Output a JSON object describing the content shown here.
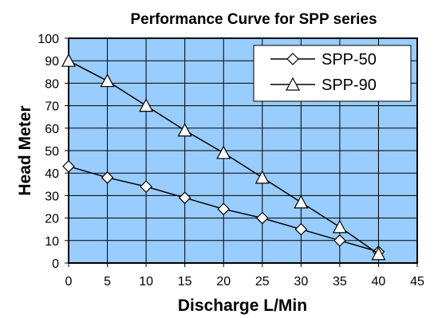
{
  "chart_data": {
    "type": "line",
    "title": "Performance Curve for SPP series",
    "xlabel": "Discharge L/Min",
    "ylabel": "Head Meter",
    "xlim": [
      0,
      45
    ],
    "ylim": [
      0,
      100
    ],
    "xticks": [
      0,
      5,
      10,
      15,
      20,
      25,
      30,
      35,
      40,
      45
    ],
    "yticks": [
      0,
      10,
      20,
      30,
      40,
      50,
      60,
      70,
      80,
      90,
      100
    ],
    "grid": true,
    "plot_background": "#99ccff",
    "legend_position": "top-right",
    "series": [
      {
        "name": "SPP-50",
        "marker": "diamond",
        "x": [
          0,
          5,
          10,
          15,
          20,
          25,
          30,
          35,
          40
        ],
        "y": [
          43,
          38,
          34,
          29,
          24,
          20,
          15,
          10,
          5
        ]
      },
      {
        "name": "SPP-90",
        "marker": "triangle",
        "x": [
          0,
          5,
          10,
          15,
          20,
          25,
          30,
          35,
          40
        ],
        "y": [
          90,
          81,
          70,
          59,
          49,
          38,
          27,
          16,
          4
        ]
      }
    ]
  }
}
